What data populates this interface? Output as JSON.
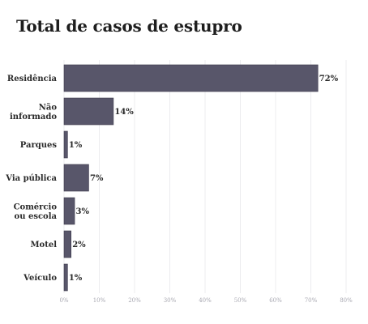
{
  "chart_data": {
    "type": "bar",
    "orientation": "horizontal",
    "title": "Total de casos de estupro",
    "categories": [
      "Residência",
      "Não informado",
      "Parques",
      "Via pública",
      "Comércio ou escola",
      "Motel",
      "Veículo"
    ],
    "category_lines": [
      [
        "Residência"
      ],
      [
        "Não",
        "informado"
      ],
      [
        "Parques"
      ],
      [
        "Via pública"
      ],
      [
        "Comércio",
        "ou escola"
      ],
      [
        "Motel"
      ],
      [
        "Veículo"
      ]
    ],
    "values": [
      72,
      14,
      1,
      7,
      3,
      2,
      1
    ],
    "value_labels": [
      "72%",
      "14%",
      "1%",
      "7%",
      "3%",
      "2%",
      "1%"
    ],
    "xlim": [
      0,
      80
    ],
    "xticks": [
      0,
      10,
      20,
      30,
      40,
      50,
      60,
      70,
      80
    ],
    "xtick_labels": [
      "0%",
      "10%",
      "20%",
      "30%",
      "40%",
      "50%",
      "60%",
      "70%",
      "80%"
    ],
    "grid": true,
    "bar_color": "#58566a",
    "bar_edge_color": "#3c3a4c"
  }
}
